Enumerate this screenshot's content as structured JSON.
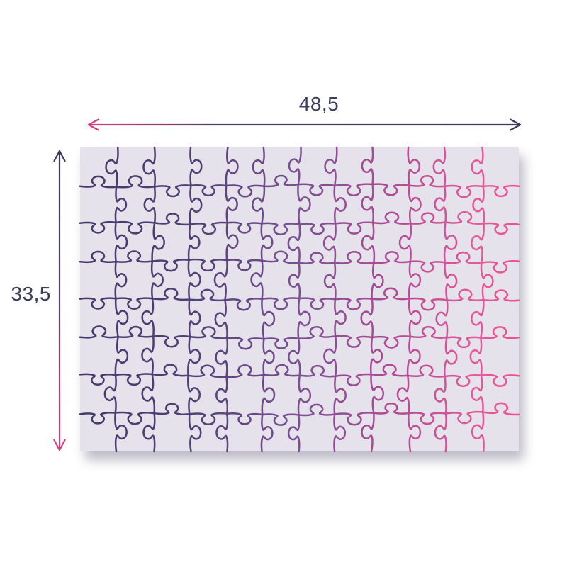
{
  "diagram": {
    "type": "puzzle-dimensions",
    "width_label": "48,5",
    "height_label": "33,5",
    "label_color": "#3c3c5e"
  },
  "board": {
    "background": "#e5e2eb",
    "shadow_color": "rgba(90,84,112,0.40)"
  },
  "puzzle": {
    "rows": 8,
    "cols": 12,
    "stroke_width": 2.5,
    "gradient_stops": [
      [
        0,
        "#46396a"
      ],
      [
        0.25,
        "#4f3f74"
      ],
      [
        0.5,
        "#7b4f92"
      ],
      [
        0.72,
        "#b14a94"
      ],
      [
        0.9,
        "#e5589a"
      ],
      [
        1,
        "#ee4f92"
      ]
    ]
  },
  "arrows": {
    "stroke_width": 2.2,
    "width_gradient": [
      [
        0,
        "#d6417f"
      ],
      [
        0.3,
        "#474066"
      ],
      [
        1,
        "#3b3a5c"
      ]
    ],
    "height_gradient": [
      [
        0,
        "#3b3a5c"
      ],
      [
        0.5,
        "#5a4070"
      ],
      [
        0.78,
        "#a53e7e"
      ],
      [
        1,
        "#d6417f"
      ]
    ]
  }
}
